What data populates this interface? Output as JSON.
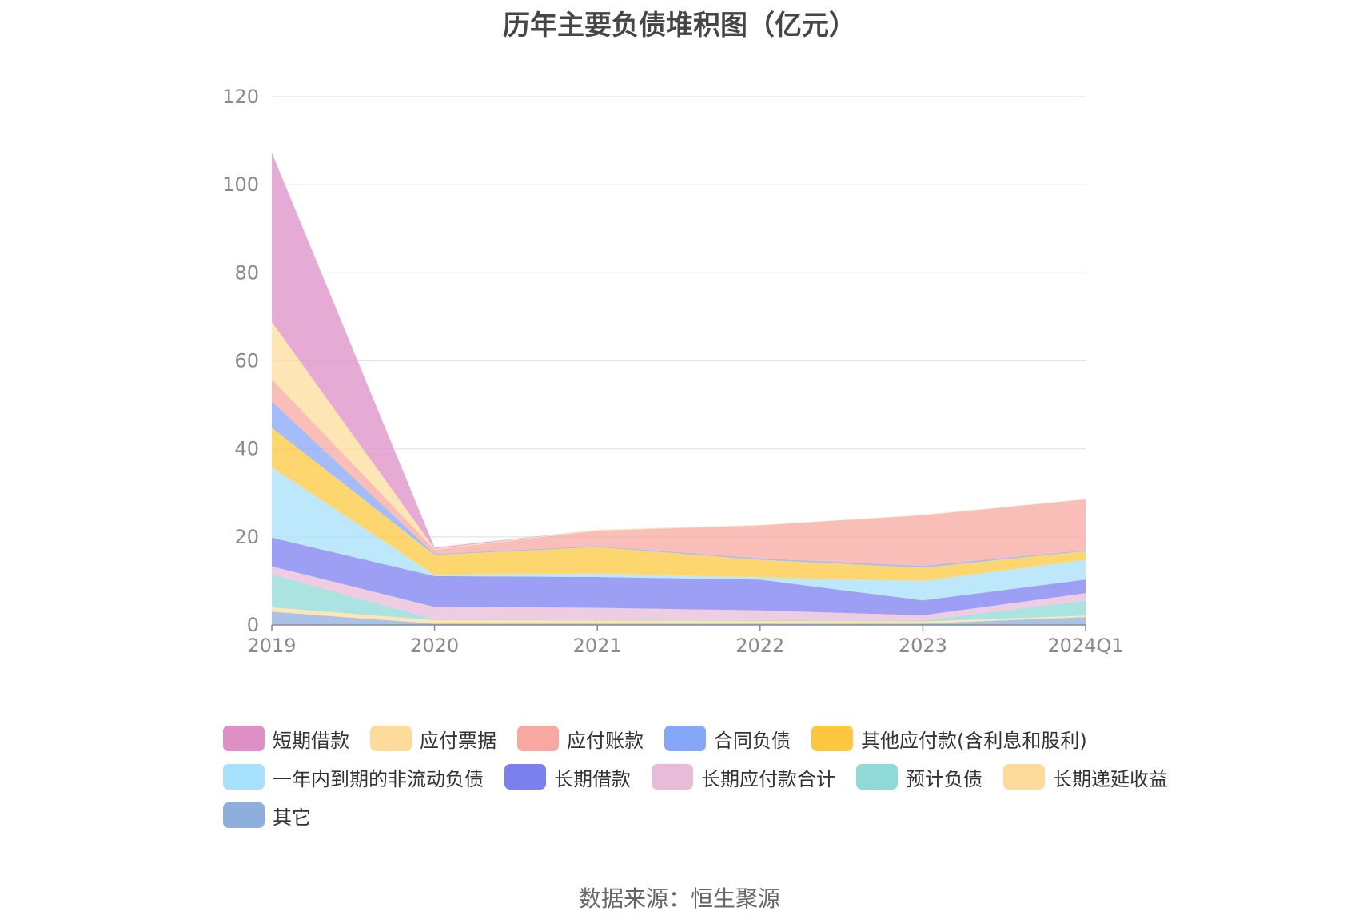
{
  "chart_data": {
    "type": "area",
    "stacked": true,
    "title": "历年主要负债堆积图（亿元）",
    "categories": [
      "2019",
      "2020",
      "2021",
      "2022",
      "2023",
      "2024Q1"
    ],
    "ylim": [
      0,
      120
    ],
    "yticks": [
      0,
      20,
      40,
      60,
      80,
      100,
      120
    ],
    "grid": true,
    "legend_position": "bottom",
    "series": [
      {
        "name": "其它",
        "color": "#8eaedc",
        "values": [
          3.0,
          0.3,
          0.3,
          0.3,
          0.3,
          1.8
        ]
      },
      {
        "name": "长期递延收益",
        "color": "#fddc9b",
        "values": [
          1.0,
          0.8,
          0.7,
          0.6,
          0.5,
          0.3
        ]
      },
      {
        "name": "预计负债",
        "color": "#8fd9d6",
        "values": [
          7.5,
          0.2,
          0.2,
          0.2,
          0.2,
          3.5
        ]
      },
      {
        "name": "长期应付款合计",
        "color": "#e8bcd8",
        "values": [
          1.8,
          2.8,
          2.7,
          2.2,
          1.2,
          1.6
        ]
      },
      {
        "name": "长期借款",
        "color": "#7b7ff0",
        "values": [
          6.5,
          7.0,
          7.0,
          7.0,
          3.4,
          3.1
        ]
      },
      {
        "name": "一年内到期的非流动负债",
        "color": "#a7e0fa",
        "values": [
          16.0,
          0.3,
          0.8,
          0.5,
          4.4,
          4.5
        ]
      },
      {
        "name": "其他应付款(含利息和股利)",
        "color": "#fdc83f",
        "values": [
          9.0,
          4.5,
          6.0,
          4.0,
          3.0,
          2.0
        ]
      },
      {
        "name": "合同负债",
        "color": "#86a6f7",
        "values": [
          6.0,
          0.2,
          0.2,
          0.3,
          0.4,
          0.2
        ]
      },
      {
        "name": "应付账款",
        "color": "#f7a8a0",
        "values": [
          5.0,
          1.0,
          3.5,
          7.5,
          11.5,
          11.5
        ]
      },
      {
        "name": "应付票据",
        "color": "#fddc9b",
        "values": [
          13.0,
          0.2,
          0.2,
          0.1,
          0.1,
          0.1
        ]
      },
      {
        "name": "短期借款",
        "color": "#de8fc6",
        "values": [
          38.5,
          0.3,
          0.0,
          0.0,
          0.0,
          0.0
        ]
      }
    ]
  },
  "legend": [
    {
      "label": "短期借款",
      "color": "#de8fc6"
    },
    {
      "label": "应付票据",
      "color": "#fddc9b"
    },
    {
      "label": "应付账款",
      "color": "#f7a8a0"
    },
    {
      "label": "合同负债",
      "color": "#86a6f7"
    },
    {
      "label": "其他应付款(含利息和股利)",
      "color": "#fdc83f"
    },
    {
      "label": "一年内到期的非流动负债",
      "color": "#a7e0fa"
    },
    {
      "label": "长期借款",
      "color": "#7b7ff0"
    },
    {
      "label": "长期应付款合计",
      "color": "#e8bcd8"
    },
    {
      "label": "预计负债",
      "color": "#8fd9d6"
    },
    {
      "label": "长期递延收益",
      "color": "#fddc9b"
    },
    {
      "label": "其它",
      "color": "#8eaedc"
    }
  ],
  "source": "数据来源：恒生聚源"
}
